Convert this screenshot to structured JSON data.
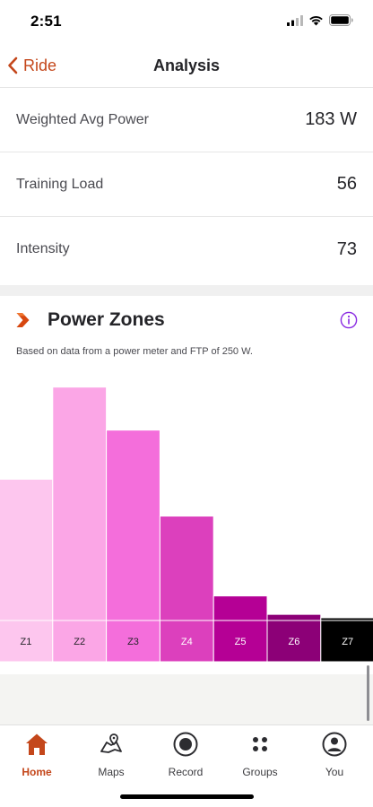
{
  "status_bar": {
    "time": "2:51"
  },
  "nav": {
    "back_label": "Ride",
    "title": "Analysis"
  },
  "stats": [
    {
      "label": "Weighted Avg Power",
      "value": "183 W"
    },
    {
      "label": "Training Load",
      "value": "56"
    },
    {
      "label": "Intensity",
      "value": "73"
    }
  ],
  "power_zones": {
    "title": "Power Zones",
    "subtitle": "Based on data from a power meter and FTP of 250 W."
  },
  "chart_data": {
    "type": "bar",
    "categories": [
      "Z1",
      "Z2",
      "Z3",
      "Z4",
      "Z5",
      "Z6",
      "Z7"
    ],
    "values": [
      23,
      38,
      31,
      17,
      4,
      1,
      0
    ],
    "colors": [
      "#fdc6ee",
      "#fba6e6",
      "#f46edb",
      "#dc40bd",
      "#b50095",
      "#8c0077",
      "#000000"
    ],
    "label_colors": [
      "#242428",
      "#242428",
      "#242428",
      "#ffffff",
      "#ffffff",
      "#ffffff",
      "#ffffff"
    ],
    "title": "",
    "xlabel": "",
    "ylabel": "",
    "ylim": [
      0,
      40
    ],
    "grid": false
  },
  "tabs": [
    {
      "label": "Home",
      "icon": "home-icon",
      "active": true
    },
    {
      "label": "Maps",
      "icon": "maps-icon",
      "active": false
    },
    {
      "label": "Record",
      "icon": "record-icon",
      "active": false
    },
    {
      "label": "Groups",
      "icon": "groups-icon",
      "active": false
    },
    {
      "label": "You",
      "icon": "profile-icon",
      "active": false
    }
  ],
  "colors": {
    "accent": "#c4471b",
    "info": "#8a2be2",
    "active_tab": "#c4471b"
  }
}
